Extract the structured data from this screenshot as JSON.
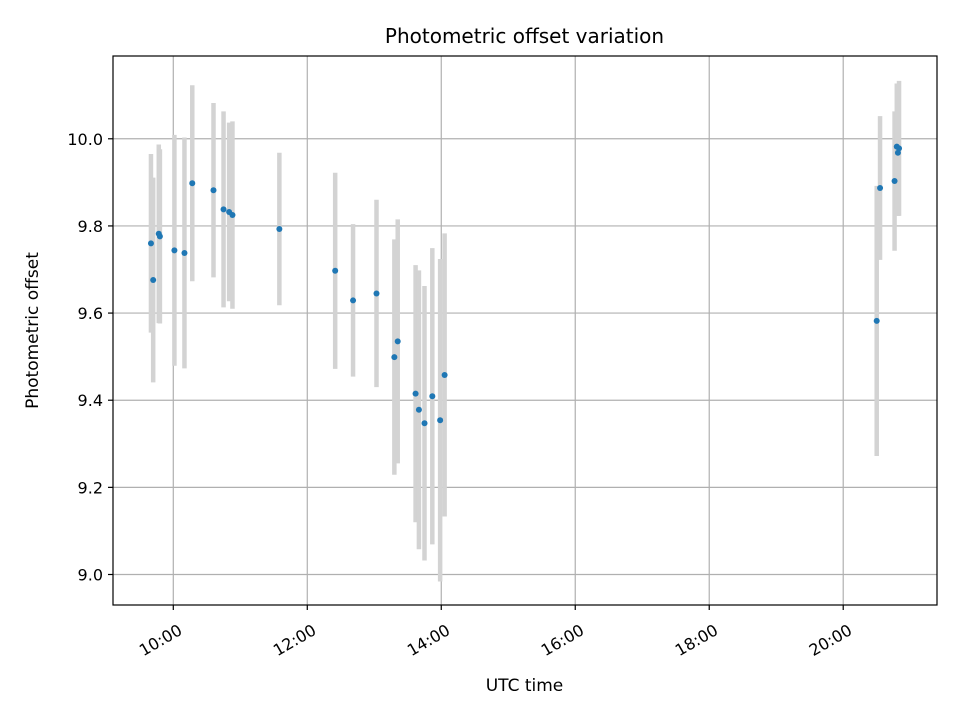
{
  "chart_data": {
    "type": "scatter",
    "title": "Photometric offset variation",
    "xlabel": "UTC time",
    "ylabel": "Photometric offset",
    "x_axis": "time",
    "x_ticks": [
      "10:00",
      "12:00",
      "14:00",
      "16:00",
      "18:00",
      "20:00"
    ],
    "xlim": [
      "09:06",
      "21:24"
    ],
    "y_ticks": [
      9.0,
      9.2,
      9.4,
      9.6,
      9.8,
      10.0
    ],
    "ylim": [
      8.93,
      10.19
    ],
    "grid": true,
    "legend": "none",
    "colors": {
      "marker": "#1f77b4",
      "errorbar": "#d3d3d3",
      "grid": "#b0b0b0"
    },
    "points": [
      {
        "x": "09:40",
        "y": 9.76,
        "yerr": 0.205
      },
      {
        "x": "09:42",
        "y": 9.676,
        "yerr": 0.235
      },
      {
        "x": "09:47",
        "y": 9.782,
        "yerr": 0.205
      },
      {
        "x": "09:48",
        "y": 9.776,
        "yerr": 0.2
      },
      {
        "x": "10:01",
        "y": 9.744,
        "yerr": 0.265
      },
      {
        "x": "10:10",
        "y": 9.738,
        "yerr": 0.265
      },
      {
        "x": "10:17",
        "y": 9.898,
        "yerr": 0.225
      },
      {
        "x": "10:36",
        "y": 9.882,
        "yerr": 0.2
      },
      {
        "x": "10:45",
        "y": 9.838,
        "yerr": 0.225
      },
      {
        "x": "10:50",
        "y": 9.832,
        "yerr": 0.205
      },
      {
        "x": "10:53",
        "y": 9.825,
        "yerr": 0.215
      },
      {
        "x": "11:35",
        "y": 9.793,
        "yerr": 0.175
      },
      {
        "x": "12:25",
        "y": 9.697,
        "yerr": 0.225
      },
      {
        "x": "12:41",
        "y": 9.629,
        "yerr": 0.175
      },
      {
        "x": "13:02",
        "y": 9.645,
        "yerr": 0.215
      },
      {
        "x": "13:18",
        "y": 9.499,
        "yerr": 0.27
      },
      {
        "x": "13:21",
        "y": 9.535,
        "yerr": 0.28
      },
      {
        "x": "13:37",
        "y": 9.415,
        "yerr": 0.295
      },
      {
        "x": "13:40",
        "y": 9.378,
        "yerr": 0.32
      },
      {
        "x": "13:45",
        "y": 9.347,
        "yerr": 0.315
      },
      {
        "x": "13:52",
        "y": 9.409,
        "yerr": 0.34
      },
      {
        "x": "13:59",
        "y": 9.354,
        "yerr": 0.37
      },
      {
        "x": "14:03",
        "y": 9.458,
        "yerr": 0.325
      },
      {
        "x": "20:30",
        "y": 9.582,
        "yerr": 0.31
      },
      {
        "x": "20:33",
        "y": 9.887,
        "yerr": 0.165
      },
      {
        "x": "20:46",
        "y": 9.903,
        "yerr": 0.16
      },
      {
        "x": "20:48",
        "y": 9.982,
        "yerr": 0.145
      },
      {
        "x": "20:49",
        "y": 9.968,
        "yerr": 0.145
      },
      {
        "x": "20:50",
        "y": 9.978,
        "yerr": 0.155
      }
    ]
  }
}
